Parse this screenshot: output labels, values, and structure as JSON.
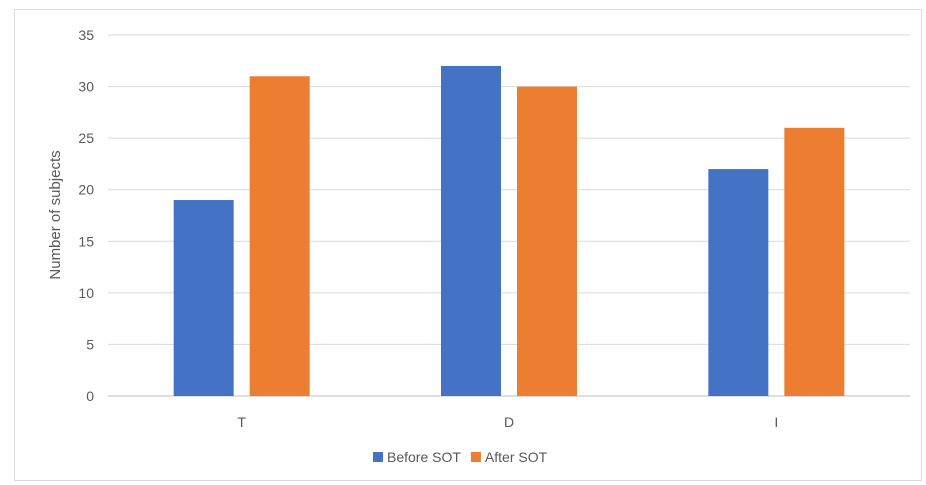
{
  "chart_data": {
    "type": "bar",
    "title": "",
    "xlabel": "",
    "ylabel": "Number of  subjects",
    "categories": [
      "T",
      "D",
      "I"
    ],
    "series": [
      {
        "name": "Before SOT",
        "values": [
          19,
          32,
          22
        ],
        "color": "#4472C4"
      },
      {
        "name": "After SOT",
        "values": [
          31,
          30,
          26
        ],
        "color": "#ED7D31"
      }
    ],
    "ylim": [
      0,
      35
    ],
    "yticks": [
      0,
      5,
      10,
      15,
      20,
      25,
      30,
      35
    ],
    "grid": true,
    "legend_position": "bottom"
  }
}
